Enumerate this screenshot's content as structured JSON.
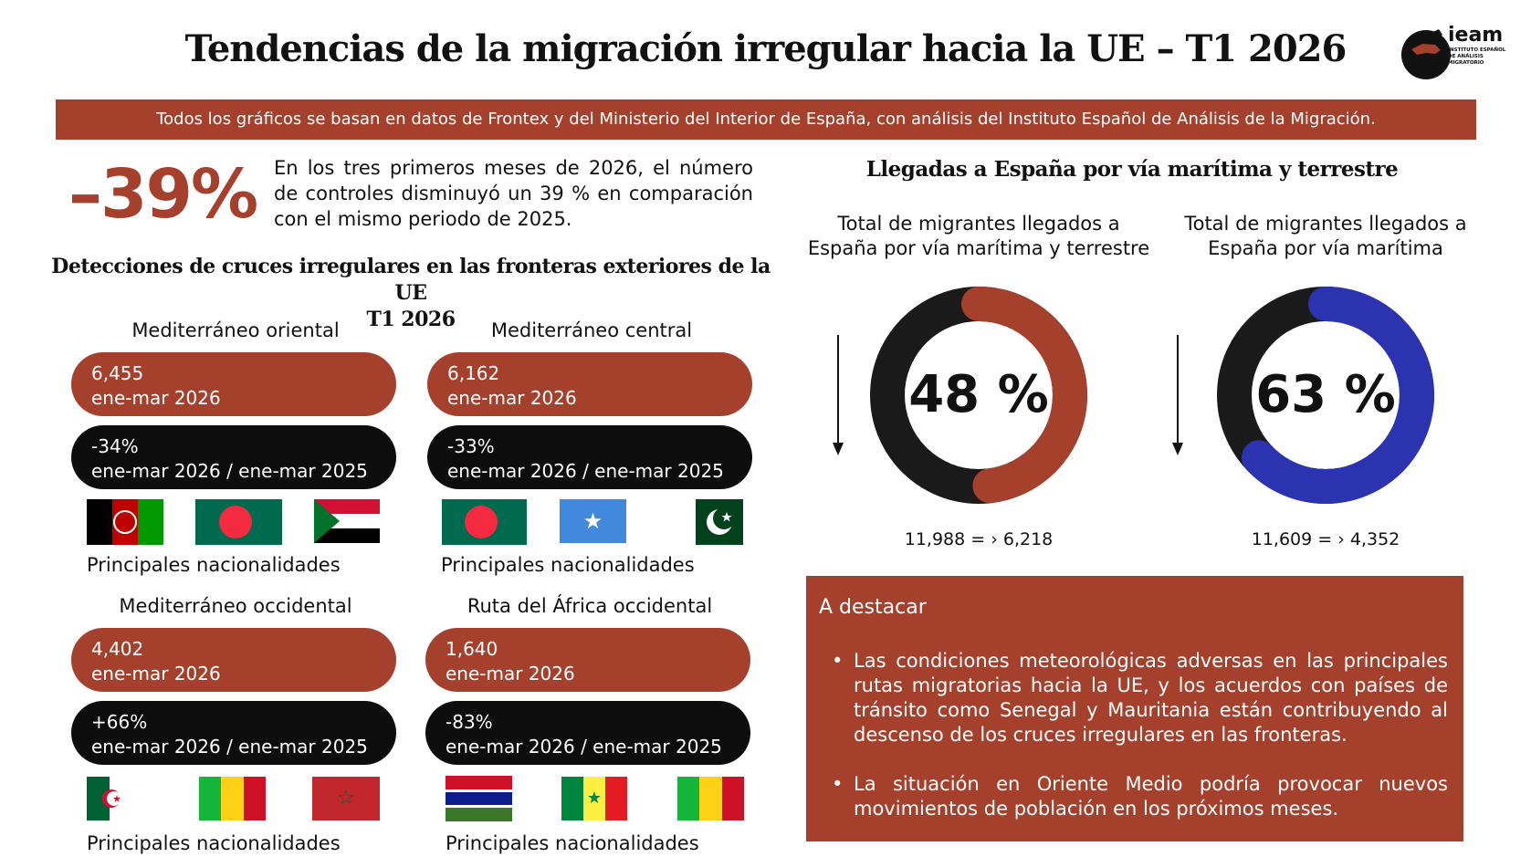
{
  "header": {
    "title": "Tendencias de la migración irregular hacia la UE – T1 2026",
    "logo_text": "ieam",
    "logo_subtext": "INSTITUTO ESPAÑOL DE ANÁLISIS MIGRATORIO"
  },
  "banner": "Todos los gráficos se basan en datos de Frontex y del Ministerio del Interior de España, con análisis del Instituto Español de Análisis de la Migración.",
  "summary": {
    "big_value": "–39%",
    "text": "En los tres primeros meses de 2026, el número de controles disminuyó un 39 % en comparación con el mismo periodo de 2025."
  },
  "detections": {
    "title_line1": "Detecciones de cruces irregulares en las fronteras exteriores de la UE",
    "title_line2": "T1 2026",
    "routes": [
      {
        "name": "Mediterráneo oriental",
        "count": "6,455",
        "period": "ene-mar 2026",
        "change": "-34%",
        "compare": "ene-mar 2026 / ene-mar 2025",
        "nat_label": "Principales nacionalidades",
        "flags": [
          "afghanistan-flag",
          "bangladesh-flag",
          "sudan-flag"
        ]
      },
      {
        "name": "Mediterráneo central",
        "count": "6,162",
        "period": "ene-mar 2026",
        "change": "-33%",
        "compare": "ene-mar 2026 / ene-mar 2025",
        "nat_label": "Principales nacionalidades",
        "flags": [
          "bangladesh-flag",
          "somalia-flag",
          "pakistan-flag"
        ]
      },
      {
        "name": "Mediterráneo occidental",
        "count": "4,402",
        "period": "ene-mar 2026",
        "change": "+66%",
        "compare": "ene-mar 2026 / ene-mar 2025",
        "nat_label": "Principales nacionalidades",
        "flags": [
          "algeria-flag",
          "mali-flag",
          "morocco-flag"
        ]
      },
      {
        "name": "Ruta del África occidental",
        "count": "1,640",
        "period": "ene-mar 2026",
        "change": "-83%",
        "compare": "ene-mar 2026 / ene-mar 2025",
        "nat_label": "Principales nacionalidades",
        "flags": [
          "gambia-flag",
          "senegal-flag",
          "mali-flag"
        ]
      }
    ]
  },
  "spain": {
    "title": "Llegadas a España por vía marítima y terrestre",
    "donuts": [
      {
        "caption_line1": "Total de migrantes llegados a",
        "caption_line2": "España por vía marítima y terrestre",
        "pct_label": "48 %",
        "fraction": 0.48,
        "color": "#a5402d",
        "change": "11,988 = › 6,218"
      },
      {
        "caption_line1": "Total de migrantes llegados a",
        "caption_line2": "España por vía marítima",
        "pct_label": "63 %",
        "fraction": 0.63,
        "color": "#2b33b0",
        "change": "11,609 = › 4,352"
      }
    ]
  },
  "highlights": {
    "title": "A destacar",
    "items": [
      "Las condiciones meteorológicas adversas en las principales rutas migratorias hacia la UE, y los acuerdos con países de tránsito como Senegal y Mauritania están contribuyendo al descenso de los cruces irregulares en las fronteras.",
      "La situación en Oriente Medio podría provocar nuevos movimientos de población en los próximos meses."
    ]
  },
  "colors": {
    "brand_red": "#a5402d",
    "dark": "#0d0d0d",
    "blue": "#2b33b0"
  }
}
